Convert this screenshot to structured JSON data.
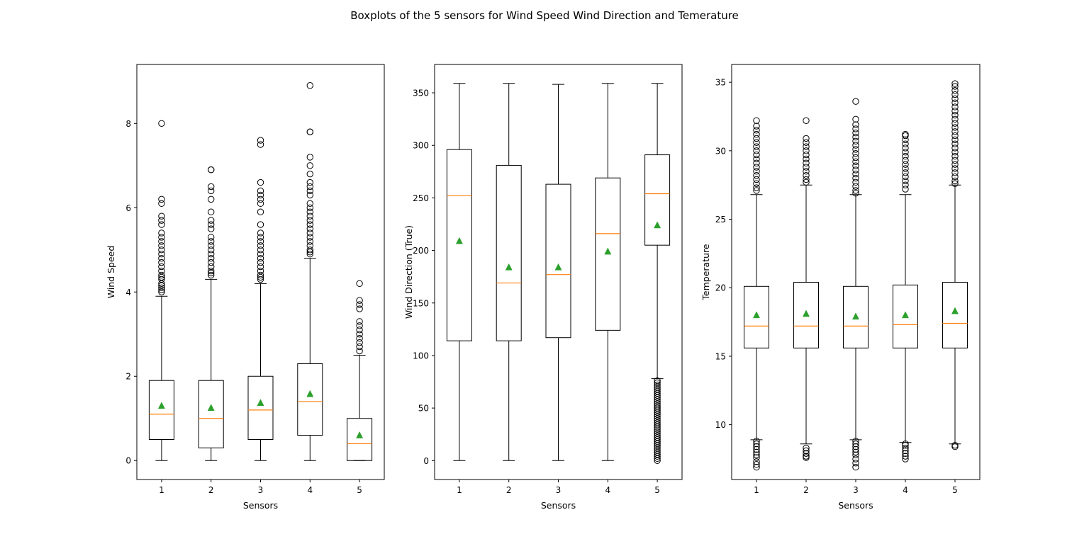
{
  "figure": {
    "title": "Boxplots of the 5 sensors for Wind Speed Wind Direction and Temerature"
  },
  "colors": {
    "median": "#ff7f0e",
    "mean": "#2ca02c",
    "box": "#000000",
    "outlier": "#000000"
  },
  "chart_data": [
    {
      "type": "boxplot",
      "xlabel": "Sensors",
      "ylabel": "Wind Speed",
      "categories": [
        "1",
        "2",
        "3",
        "4",
        "5"
      ],
      "ylim": [
        -0.45,
        9.4
      ],
      "yticks": [
        0,
        2,
        4,
        6,
        8
      ],
      "grid": false,
      "boxes": [
        {
          "label": "1",
          "whislo": 0,
          "q1": 0.5,
          "med": 1.1,
          "mean": 1.3,
          "q3": 1.9,
          "whishi": 3.9,
          "fliers": [
            4.0,
            4.05,
            4.1,
            4.15,
            4.2,
            4.3,
            4.35,
            4.4,
            4.5,
            4.6,
            4.7,
            4.8,
            4.9,
            5.0,
            5.1,
            5.2,
            5.3,
            5.4,
            5.6,
            5.7,
            5.8,
            6.1,
            6.2,
            8.0
          ]
        },
        {
          "label": "2",
          "whislo": 0,
          "q1": 0.3,
          "med": 1.0,
          "mean": 1.25,
          "q3": 1.9,
          "whishi": 4.3,
          "fliers": [
            4.4,
            4.45,
            4.5,
            4.6,
            4.7,
            4.8,
            4.9,
            5.0,
            5.1,
            5.2,
            5.3,
            5.5,
            5.6,
            5.7,
            5.9,
            6.2,
            6.4,
            6.5,
            6.9,
            6.9
          ]
        },
        {
          "label": "3",
          "whislo": 0,
          "q1": 0.5,
          "med": 1.2,
          "mean": 1.37,
          "q3": 2.0,
          "whishi": 4.2,
          "fliers": [
            4.3,
            4.35,
            4.4,
            4.5,
            4.6,
            4.7,
            4.8,
            4.9,
            5.0,
            5.1,
            5.2,
            5.3,
            5.4,
            5.6,
            5.9,
            6.1,
            6.2,
            6.3,
            6.4,
            6.6,
            7.5,
            7.6
          ]
        },
        {
          "label": "4",
          "whislo": 0,
          "q1": 0.6,
          "med": 1.4,
          "mean": 1.58,
          "q3": 2.3,
          "whishi": 4.8,
          "fliers": [
            4.9,
            4.95,
            5.0,
            5.1,
            5.2,
            5.3,
            5.4,
            5.5,
            5.6,
            5.7,
            5.8,
            5.9,
            6.0,
            6.1,
            6.3,
            6.4,
            6.5,
            6.6,
            6.8,
            7.0,
            7.2,
            7.8,
            7.8,
            8.9
          ]
        },
        {
          "label": "5",
          "whislo": 0,
          "q1": 0,
          "med": 0.4,
          "mean": 0.6,
          "q3": 1.0,
          "whishi": 2.5,
          "fliers": [
            2.6,
            2.7,
            2.8,
            2.9,
            3.0,
            3.1,
            3.2,
            3.3,
            3.6,
            3.7,
            3.8,
            4.2
          ]
        }
      ]
    },
    {
      "type": "boxplot",
      "xlabel": "Sensors",
      "ylabel": "Wind Direction (True)",
      "categories": [
        "1",
        "2",
        "3",
        "4",
        "5"
      ],
      "ylim": [
        -18,
        377
      ],
      "yticks": [
        0,
        50,
        100,
        150,
        200,
        250,
        300,
        350
      ],
      "grid": false,
      "boxes": [
        {
          "label": "1",
          "whislo": 0,
          "q1": 114,
          "med": 252,
          "mean": 209,
          "q3": 296,
          "whishi": 359,
          "fliers": []
        },
        {
          "label": "2",
          "whislo": 0,
          "q1": 114,
          "med": 169,
          "mean": 184,
          "q3": 281,
          "whishi": 359,
          "fliers": []
        },
        {
          "label": "3",
          "whislo": 0,
          "q1": 117,
          "med": 177,
          "mean": 184,
          "q3": 263,
          "whishi": 358,
          "fliers": []
        },
        {
          "label": "4",
          "whislo": 0,
          "q1": 124,
          "med": 216,
          "mean": 199,
          "q3": 269,
          "whishi": 359,
          "fliers": []
        },
        {
          "label": "5",
          "whislo": 78,
          "q1": 205,
          "med": 254,
          "mean": 224,
          "q3": 291,
          "whishi": 359,
          "fliers": [
            0,
            2,
            4,
            6,
            8,
            10,
            12,
            14,
            16,
            18,
            20,
            22,
            24,
            26,
            28,
            30,
            32,
            34,
            36,
            38,
            40,
            42,
            44,
            46,
            48,
            50,
            52,
            54,
            56,
            58,
            60,
            62,
            64,
            66,
            68,
            70,
            72,
            74,
            76
          ]
        }
      ]
    },
    {
      "type": "boxplot",
      "xlabel": "Sensors",
      "ylabel": "Temperature",
      "categories": [
        "1",
        "2",
        "3",
        "4",
        "5"
      ],
      "ylim": [
        6.0,
        36.3
      ],
      "yticks": [
        10,
        15,
        20,
        25,
        30,
        35
      ],
      "grid": false,
      "boxes": [
        {
          "label": "1",
          "whislo": 8.9,
          "q1": 15.6,
          "med": 17.2,
          "mean": 18.0,
          "q3": 20.1,
          "whishi": 26.8,
          "fliers": [
            6.9,
            7.1,
            7.3,
            7.6,
            7.8,
            8.0,
            8.2,
            8.4,
            8.6,
            8.8,
            27.1,
            27.3,
            27.6,
            27.9,
            28.2,
            28.5,
            28.8,
            29.1,
            29.4,
            29.7,
            30.0,
            30.3,
            30.6,
            30.9,
            31.2,
            31.5,
            31.8,
            32.2
          ]
        },
        {
          "label": "2",
          "whislo": 8.6,
          "q1": 15.6,
          "med": 17.2,
          "mean": 18.1,
          "q3": 20.4,
          "whishi": 27.5,
          "fliers": [
            7.6,
            7.7,
            7.9,
            8.1,
            8.3,
            27.7,
            27.9,
            28.2,
            28.5,
            28.8,
            29.1,
            29.4,
            29.7,
            30.0,
            30.3,
            30.6,
            30.9,
            32.2
          ]
        },
        {
          "label": "3",
          "whislo": 8.9,
          "q1": 15.6,
          "med": 17.2,
          "mean": 17.9,
          "q3": 20.1,
          "whishi": 26.8,
          "fliers": [
            6.9,
            7.2,
            7.5,
            7.8,
            8.0,
            8.2,
            8.4,
            8.6,
            8.8,
            26.9,
            27.1,
            27.4,
            27.7,
            28.0,
            28.3,
            28.6,
            28.9,
            29.2,
            29.5,
            29.8,
            30.1,
            30.4,
            30.7,
            31.0,
            31.3,
            31.6,
            31.9,
            32.3,
            33.6
          ]
        },
        {
          "label": "4",
          "whislo": 8.7,
          "q1": 15.6,
          "med": 17.3,
          "mean": 18.0,
          "q3": 20.2,
          "whishi": 26.8,
          "fliers": [
            7.5,
            7.7,
            7.9,
            8.1,
            8.3,
            8.5,
            8.6,
            27.2,
            27.5,
            27.8,
            28.1,
            28.4,
            28.7,
            29.0,
            29.3,
            29.6,
            29.9,
            30.2,
            30.5,
            30.8,
            31.1,
            31.2
          ]
        },
        {
          "label": "5",
          "whislo": 8.6,
          "q1": 15.6,
          "med": 17.4,
          "mean": 18.3,
          "q3": 20.4,
          "whishi": 27.5,
          "fliers": [
            8.4,
            8.5,
            27.6,
            27.8,
            28.1,
            28.4,
            28.7,
            29.0,
            29.3,
            29.6,
            29.9,
            30.2,
            30.5,
            30.8,
            31.1,
            31.4,
            31.7,
            32.0,
            32.3,
            32.6,
            32.9,
            33.2,
            33.5,
            33.8,
            34.1,
            34.4,
            34.7,
            34.9
          ]
        }
      ]
    }
  ]
}
